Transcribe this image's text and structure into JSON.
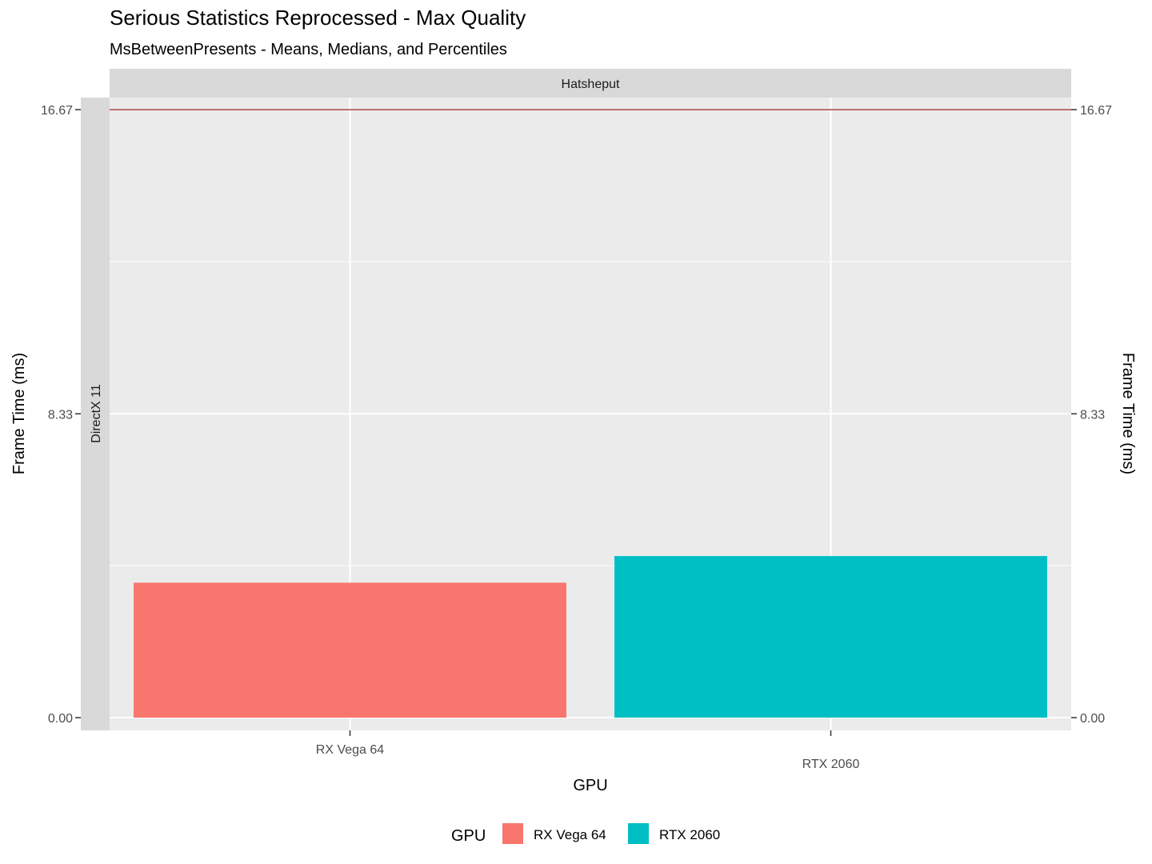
{
  "chart_data": {
    "type": "bar",
    "title": "Serious Statistics Reprocessed - Max Quality",
    "subtitle": "MsBetweenPresents - Means, Medians, and Percentiles",
    "facet_column": "Hatsheput",
    "facet_row": "DirectX 11",
    "xlabel": "GPU",
    "ylabel": "Frame Time (ms)",
    "ylabel_right": "Frame Time (ms)",
    "categories": [
      "RX Vega 64",
      "RTX 2060"
    ],
    "values": [
      3.7,
      4.43
    ],
    "colors": [
      "#F8766D",
      "#00BFC4"
    ],
    "ylim": [
      -0.35,
      17.0
    ],
    "y_ticks": [
      0,
      8.33,
      16.67
    ],
    "y_tick_labels": [
      "0.00",
      "8.33",
      "16.67"
    ],
    "reference_line": {
      "value": 16.67,
      "color": "#8B0000"
    },
    "grid": true,
    "legend": {
      "position": "bottom",
      "title": "GPU",
      "entries": [
        "RX Vega 64",
        "RTX 2060"
      ]
    }
  }
}
